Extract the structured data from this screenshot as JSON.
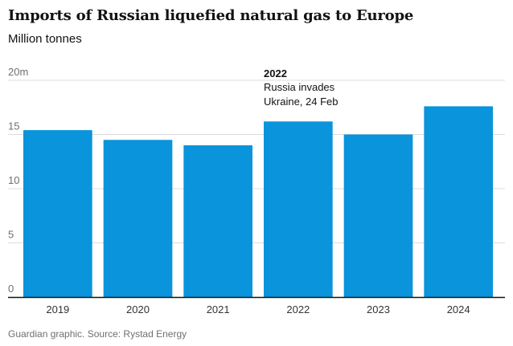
{
  "header": {
    "title": "Imports of Russian liquefied natural gas to Europe",
    "subtitle": "Million tonnes"
  },
  "footer": {
    "source": "Guardian graphic. Source: Rystad Energy"
  },
  "colors": {
    "bar": "#0a94dc",
    "grid": "#dcdcdc",
    "axis": "#121212"
  },
  "chart_data": {
    "type": "bar",
    "title": "Imports of Russian liquefied natural gas to Europe",
    "ylabel": "Million tonnes",
    "xlabel": "",
    "categories": [
      "2019",
      "2020",
      "2021",
      "2022",
      "2023",
      "2024"
    ],
    "values": [
      15.4,
      14.5,
      14.0,
      16.2,
      15.0,
      17.6
    ],
    "ylim": [
      0,
      20
    ],
    "yticks": [
      0,
      5,
      10,
      15,
      20
    ],
    "ytick_labels": [
      "0",
      "5",
      "10",
      "15",
      "20m"
    ],
    "grid": true,
    "annotations": [
      {
        "category": "2022",
        "heading": "2022",
        "lines": [
          "Russia invades",
          "Ukraine, 24 Feb"
        ]
      }
    ]
  }
}
